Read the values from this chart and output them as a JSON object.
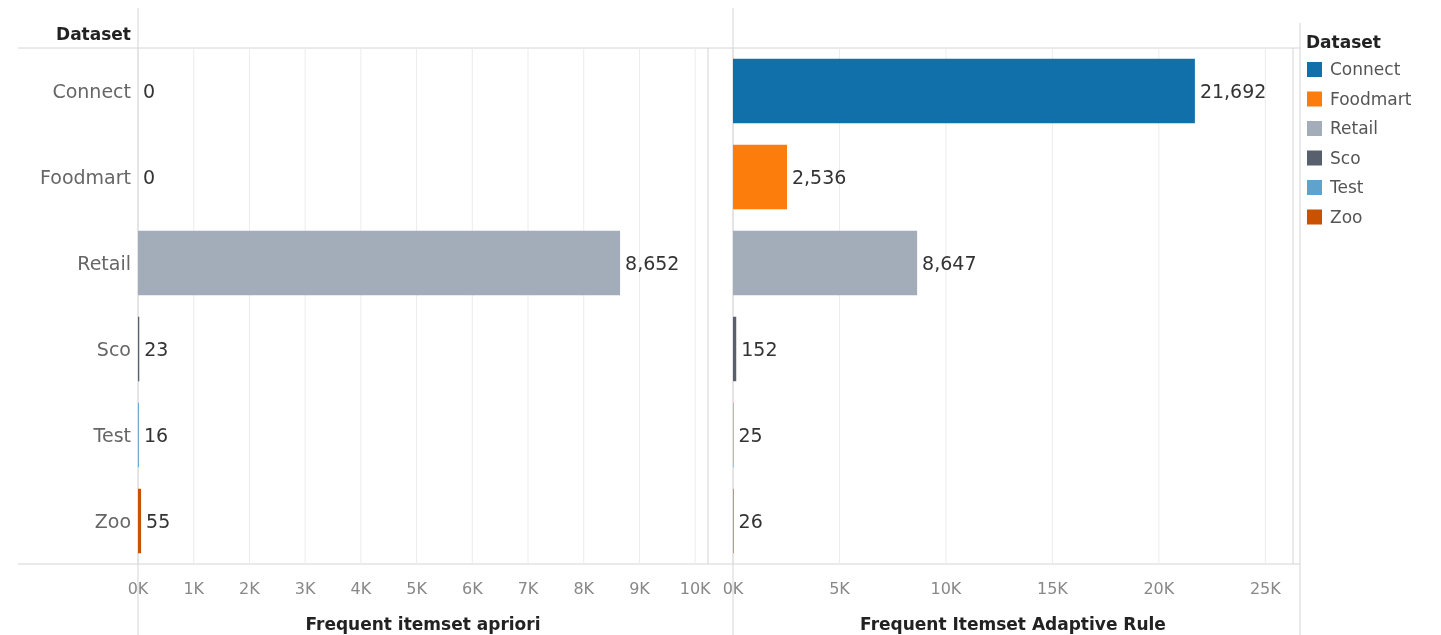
{
  "chart_data": [
    {
      "type": "bar",
      "orientation": "horizontal",
      "ylabel": "Dataset",
      "xlabel": "Frequent itemset apriori",
      "categories": [
        "Connect",
        "Foodmart",
        "Retail",
        "Sco",
        "Test",
        "Zoo"
      ],
      "values": [
        0,
        0,
        8652,
        23,
        16,
        55
      ],
      "value_labels": [
        "0",
        "0",
        "8,652",
        "23",
        "16",
        "55"
      ],
      "colors": [
        "#1170aa",
        "#fc7d0b",
        "#a3acb9",
        "#57606c",
        "#5fa2ce",
        "#c85200"
      ],
      "xlim": [
        0,
        10230
      ],
      "xticks": [
        {
          "value": 0,
          "label": "0K"
        },
        {
          "value": 1000,
          "label": "1K"
        },
        {
          "value": 2000,
          "label": "2K"
        },
        {
          "value": 3000,
          "label": "3K"
        },
        {
          "value": 4000,
          "label": "4K"
        },
        {
          "value": 5000,
          "label": "5K"
        },
        {
          "value": 6000,
          "label": "6K"
        },
        {
          "value": 7000,
          "label": "7K"
        },
        {
          "value": 8000,
          "label": "8K"
        },
        {
          "value": 9000,
          "label": "9K"
        },
        {
          "value": 10000,
          "label": "10K"
        }
      ],
      "grid": "x"
    },
    {
      "type": "bar",
      "orientation": "horizontal",
      "stacked": true,
      "xlabel": "Frequent Itemset Adaptive Rule",
      "categories": [
        null,
        null,
        null,
        null,
        null,
        null
      ],
      "series": [
        {
          "name": "Connect",
          "color": "#1170aa",
          "values": [
            21692,
            null,
            null,
            null,
            null,
            null
          ],
          "value_labels": [
            "21,692",
            null,
            null,
            null,
            null,
            null
          ]
        },
        {
          "name": "Foodmart",
          "color": "#fc7d0b",
          "values": [
            null,
            2536,
            null,
            null,
            null,
            null
          ],
          "value_labels": [
            null,
            "2,536",
            null,
            null,
            null,
            null
          ]
        },
        {
          "name": "Retail",
          "color": "#a3acb9",
          "values": [
            null,
            null,
            8647,
            null,
            null,
            null
          ],
          "value_labels": [
            null,
            null,
            "8,647",
            null,
            null,
            null
          ]
        },
        {
          "name": "Sco",
          "color": "#57606c",
          "values": [
            null,
            null,
            null,
            152,
            null,
            null
          ],
          "value_labels": [
            null,
            null,
            null,
            "152",
            null,
            null
          ]
        },
        {
          "name": "Test",
          "color": "#5fa2ce",
          "values": [
            null,
            null,
            null,
            null,
            25,
            null
          ],
          "value_labels": [
            null,
            null,
            null,
            null,
            "25",
            null
          ]
        },
        {
          "name": "Zoo",
          "color": "#c85200",
          "values": [
            null,
            null,
            null,
            null,
            null,
            26
          ],
          "value_labels": [
            null,
            null,
            null,
            null,
            null,
            "26"
          ]
        }
      ],
      "xlim": [
        0,
        26300
      ],
      "xticks": [
        {
          "value": 0,
          "label": "0K"
        },
        {
          "value": 5000,
          "label": "5K"
        },
        {
          "value": 10000,
          "label": "10K"
        },
        {
          "value": 15000,
          "label": "15K"
        },
        {
          "value": 20000,
          "label": "20K"
        },
        {
          "value": 25000,
          "label": "25K"
        }
      ],
      "grid": "x",
      "tick_labels": "x",
      "legend": "right",
      "legend_title": "Dataset"
    }
  ]
}
